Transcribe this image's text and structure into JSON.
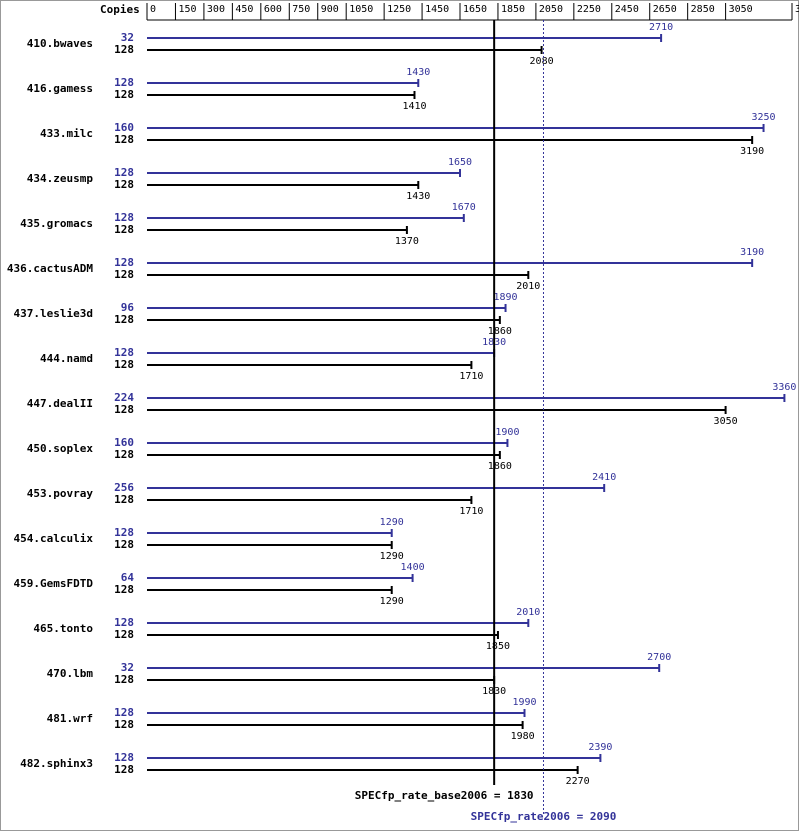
{
  "chart_data": {
    "type": "bar",
    "orientation": "horizontal",
    "x_axis_label": "Copies",
    "categories": [
      "410.bwaves",
      "416.gamess",
      "433.milc",
      "434.zeusmp",
      "435.gromacs",
      "436.cactusADM",
      "437.leslie3d",
      "444.namd",
      "447.dealII",
      "450.soplex",
      "453.povray",
      "454.calculix",
      "459.GemsFDTD",
      "465.tonto",
      "470.lbm",
      "481.wrf",
      "482.sphinx3"
    ],
    "series": [
      {
        "color": "#333399",
        "copies": [
          32,
          128,
          160,
          128,
          128,
          128,
          96,
          128,
          224,
          160,
          256,
          128,
          64,
          128,
          32,
          128,
          128
        ],
        "values": [
          2710,
          1430,
          3250,
          1650,
          1670,
          3190,
          1890,
          1830,
          3360,
          1900,
          2410,
          1290,
          1400,
          2010,
          2700,
          1990,
          2390
        ]
      },
      {
        "color": "#000000",
        "copies": [
          128,
          128,
          128,
          128,
          128,
          128,
          128,
          128,
          128,
          128,
          128,
          128,
          128,
          128,
          128,
          128,
          128
        ],
        "values": [
          2080,
          1410,
          3190,
          1430,
          1370,
          2010,
          1860,
          1710,
          3050,
          1860,
          1710,
          1290,
          1290,
          1850,
          1830,
          1980,
          2270
        ]
      }
    ],
    "xlim": [
      0,
      3400
    ],
    "xticks": [
      0,
      150,
      300,
      450,
      600,
      750,
      900,
      1050,
      1250,
      1450,
      1650,
      1850,
      2050,
      2250,
      2450,
      2650,
      2850,
      3050,
      3400
    ],
    "reference_lines": [
      {
        "value": 1830,
        "label": "SPECfp_rate_base2006 = 1830",
        "color": "#000000",
        "style": "solid"
      },
      {
        "value": 2090,
        "label": "SPECfp_rate2006 = 2090",
        "color": "#333399",
        "style": "dotted"
      }
    ]
  }
}
